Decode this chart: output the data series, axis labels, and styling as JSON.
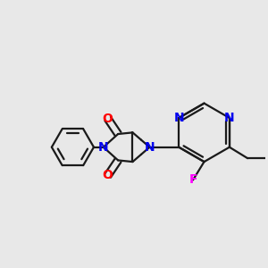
{
  "background_color": "#E8E8E8",
  "bond_color": "#1a1a1a",
  "atom_colors": {
    "N": "#0000EE",
    "O": "#FF0000",
    "F": "#FF00FF",
    "C": "#1a1a1a"
  },
  "bond_width": 1.6,
  "font_size": 10,
  "figsize": [
    3.0,
    3.0
  ],
  "dpi": 100
}
